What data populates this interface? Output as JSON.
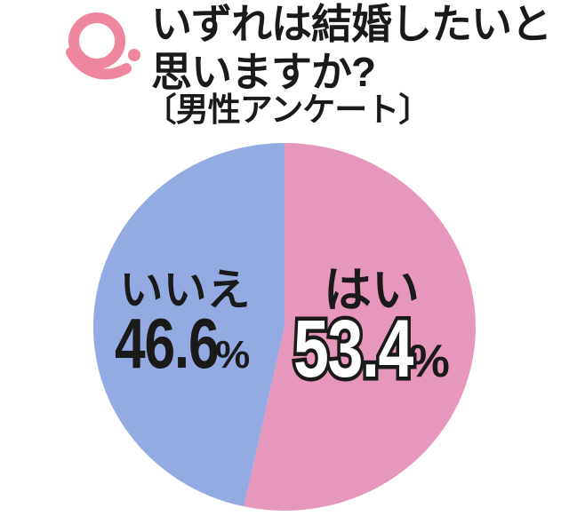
{
  "header": {
    "q_mark": "Q.",
    "title_line1": "いずれは結婚したいと",
    "title_line2": "思いますか?",
    "subtitle": "〔男性アンケート〕"
  },
  "labels": {
    "percent_sign": "%"
  },
  "chart_data": {
    "type": "pie",
    "title": "いずれは結婚したいと思いますか?",
    "subtitle": "〔男性アンケート〕",
    "unit": "%",
    "start_angle_deg": 0,
    "direction": "clockwise",
    "legend_position": "none",
    "slices": [
      {
        "label": "はい",
        "value": 53.4,
        "display_value": "53.4",
        "color": "#e796bc",
        "value_text_color": "#ffffff"
      },
      {
        "label": "いいえ",
        "value": 46.6,
        "display_value": "46.6",
        "color": "#94aae3",
        "value_text_color": "#1a1a1a"
      }
    ]
  },
  "colors": {
    "q_pink": "#ee86a0",
    "pie_pink": "#e796bc",
    "pie_blue": "#94aae3",
    "text_black": "#1a1a1a",
    "background": "#ffffff"
  }
}
